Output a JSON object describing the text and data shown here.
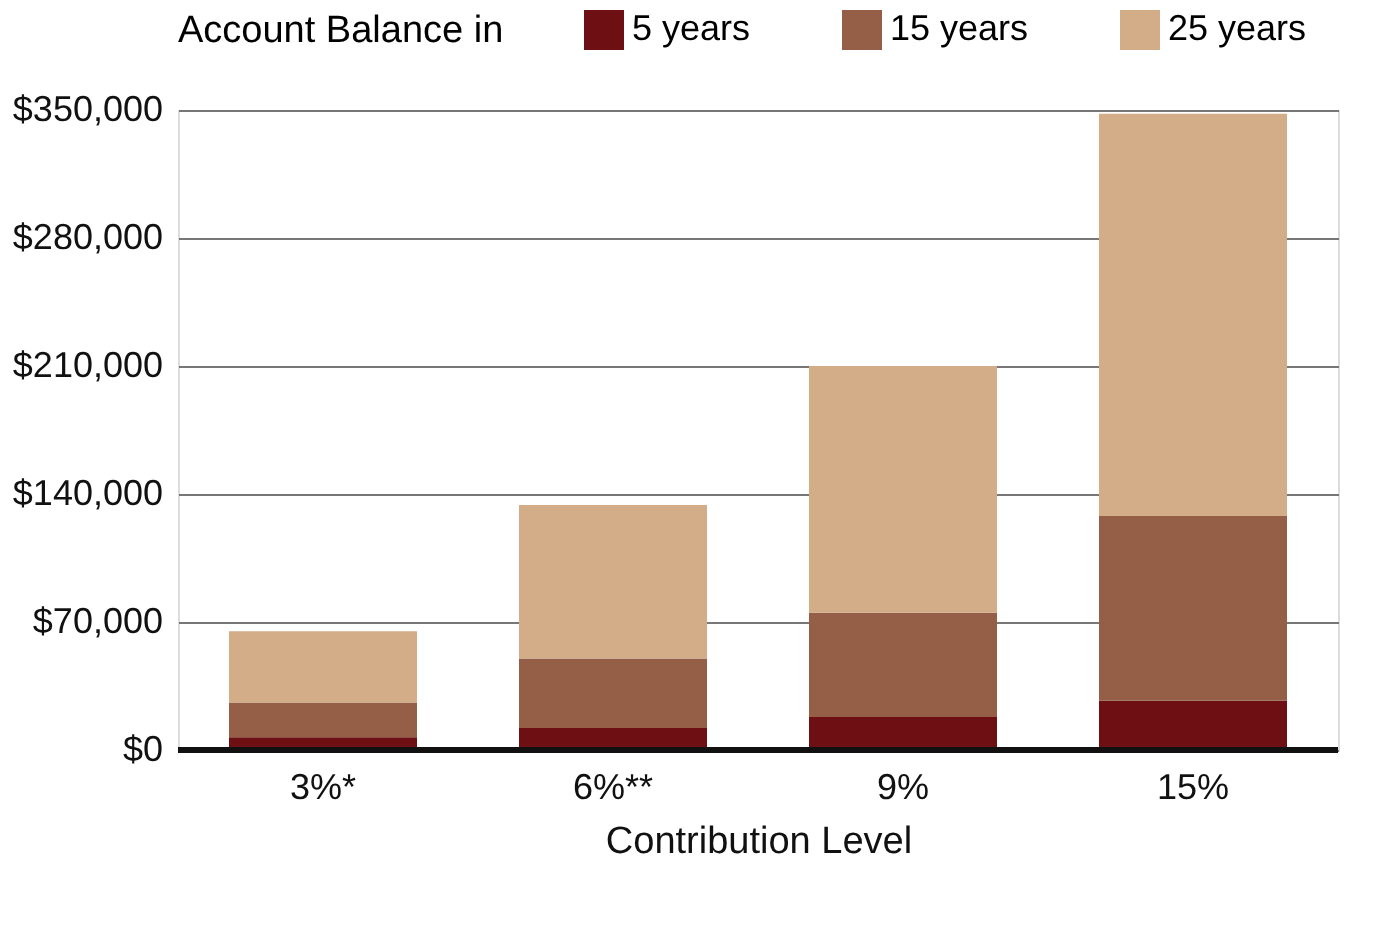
{
  "chart_data": {
    "type": "bar",
    "stacked": true,
    "legend_title": "Account Balance in",
    "legend": "top",
    "xlabel": "Contribution Level",
    "categories": [
      "3%*",
      "6%**",
      "9%",
      "15%"
    ],
    "series": [
      {
        "name": "5 years",
        "color": "#6e0f14",
        "values": [
          7000,
          12000,
          18000,
          27000
        ]
      },
      {
        "name": "15 years",
        "color": "#955f47",
        "values": [
          19000,
          38000,
          57000,
          101000
        ]
      },
      {
        "name": "25 years",
        "color": "#d2ad88",
        "values": [
          39000,
          84000,
          135000,
          220000
        ]
      }
    ],
    "ylim": [
      0,
      350000
    ],
    "yticks": [
      {
        "value": 0,
        "label": "$0"
      },
      {
        "value": 70000,
        "label": "$70,000"
      },
      {
        "value": 140000,
        "label": "$140,000"
      },
      {
        "value": 210000,
        "label": "$210,000"
      },
      {
        "value": 280000,
        "label": "$280,000"
      },
      {
        "value": 350000,
        "label": "$350,000"
      }
    ],
    "grid": "y"
  }
}
